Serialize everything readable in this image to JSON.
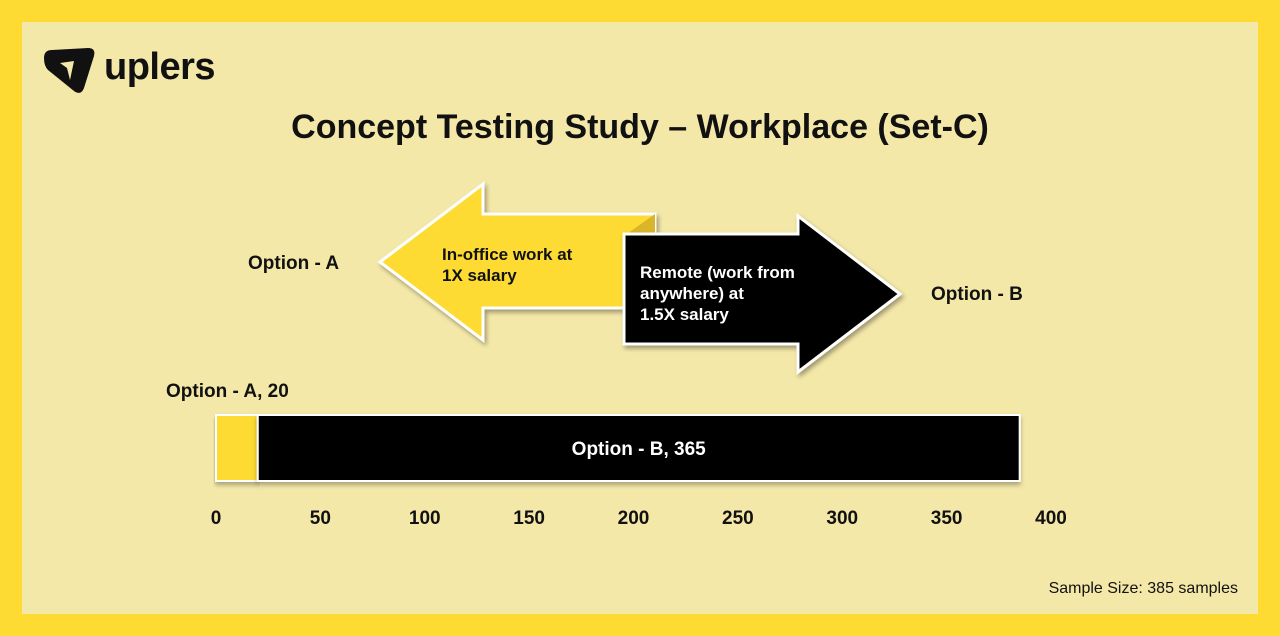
{
  "brand": {
    "name": "uplers"
  },
  "title": "Concept Testing Study – Workplace (Set-C)",
  "concepts": {
    "option_a": {
      "label": "Option - A",
      "description_line1": "In-office work at",
      "description_line2": "1X salary",
      "color": "#fddb33"
    },
    "option_b": {
      "label": "Option - B",
      "description_line1": "Remote (work from",
      "description_line2": "anywhere) at",
      "description_line3": "1.5X salary",
      "color": "#000000"
    }
  },
  "chart_data": {
    "type": "bar",
    "orientation": "horizontal-stacked",
    "series": [
      {
        "name": "Option - A",
        "value": 20,
        "label": "Option - A, 20",
        "color": "#fddb33"
      },
      {
        "name": "Option - B",
        "value": 365,
        "label": "Option - B, 365",
        "color": "#000000"
      }
    ],
    "xlim": [
      0,
      400
    ],
    "xticks": [
      0,
      50,
      100,
      150,
      200,
      250,
      300,
      350,
      400
    ],
    "grid": false,
    "legend": "none"
  },
  "footer": {
    "sample_size": "Sample Size: 385 samples"
  }
}
